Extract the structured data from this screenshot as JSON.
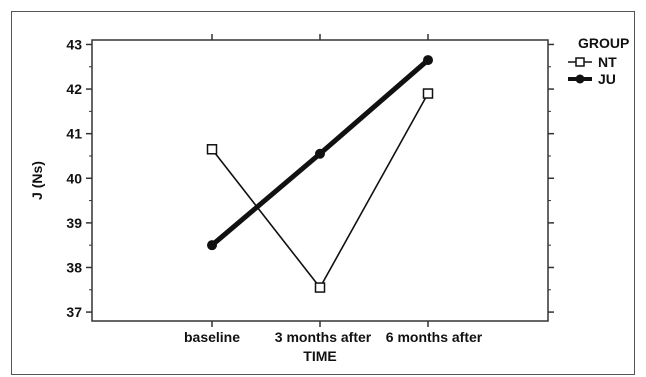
{
  "chart_data": {
    "type": "line",
    "xlabel": "TIME",
    "ylabel": "J (Ns)",
    "categories": [
      "baseline",
      "3 months after",
      "6 months after"
    ],
    "ylim": [
      36.8,
      43.1
    ],
    "yticks": [
      37,
      38,
      39,
      40,
      41,
      42,
      43
    ],
    "legend": {
      "title": "GROUP",
      "placement": "top-right outside"
    },
    "series": [
      {
        "name": "NT",
        "values": [
          40.65,
          37.55,
          41.9
        ],
        "marker": "open-square",
        "color": "#111111",
        "style": "thin"
      },
      {
        "name": "JU",
        "values": [
          38.5,
          40.55,
          42.65
        ],
        "marker": "filled-circle",
        "color": "#111111",
        "style": "thick"
      }
    ]
  }
}
